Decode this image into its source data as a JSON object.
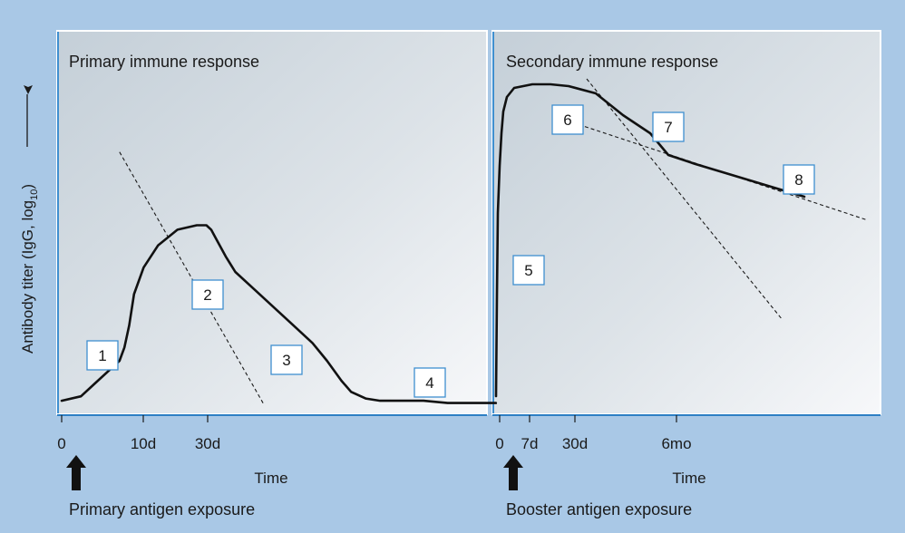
{
  "figure": {
    "y_axis_label_main": "Antibody titer (IgG, log",
    "y_axis_label_sub": "10",
    "y_axis_label_end": ")"
  },
  "chart_data": [
    {
      "type": "line",
      "title": "Primary immune response",
      "xlabel": "Time",
      "ylabel": "Antibody titer (IgG, log10)",
      "x_ticks": [
        "0",
        "10d",
        "30d"
      ],
      "exposure_label": "Primary antigen exposure",
      "annotations": [
        "1",
        "2",
        "3",
        "4"
      ],
      "series": [
        {
          "name": "antibody titer",
          "x": [
            0,
            4,
            7,
            10,
            12,
            13,
            14,
            15,
            17,
            20,
            24,
            28,
            30,
            31,
            32,
            34,
            36,
            40,
            44,
            48,
            52,
            55,
            58,
            60,
            63,
            66,
            70,
            75,
            80,
            90
          ],
          "y": [
            0.02,
            0.04,
            0.1,
            0.16,
            0.2,
            0.26,
            0.36,
            0.5,
            0.62,
            0.72,
            0.79,
            0.81,
            0.81,
            0.79,
            0.75,
            0.67,
            0.6,
            0.52,
            0.44,
            0.36,
            0.28,
            0.2,
            0.11,
            0.06,
            0.03,
            0.02,
            0.02,
            0.02,
            0.01,
            0.01
          ]
        }
      ],
      "decay_fit_line": {
        "x": [
          12,
          42
        ],
        "y": [
          1.14,
          0.0
        ]
      }
    },
    {
      "type": "line",
      "title": "Secondary immune response",
      "xlabel": "Time",
      "ylabel": "Antibody titer (IgG, log10)",
      "x_ticks": [
        "0",
        "7d",
        "30d",
        "6mo"
      ],
      "exposure_label": "Booster antigen exposure",
      "annotations": [
        "5",
        "6",
        "7",
        "8"
      ],
      "series": [
        {
          "name": "antibody titer",
          "x": [
            0,
            0.5,
            1,
            2,
            3,
            4,
            6,
            10,
            20,
            30,
            40,
            55,
            70,
            85,
            95,
            110,
            130,
            150,
            170
          ],
          "y": [
            0.05,
            0.6,
            1.06,
            1.32,
            1.5,
            1.62,
            1.7,
            1.75,
            1.77,
            1.77,
            1.76,
            1.72,
            1.6,
            1.5,
            1.38,
            1.33,
            1.27,
            1.21,
            1.15
          ]
        }
      ],
      "fast_decay_fit_line": {
        "x": [
          50,
          158
        ],
        "y": [
          1.8,
          0.47
        ]
      },
      "slow_decay_fit_line": {
        "x": [
          39,
          205
        ],
        "y": [
          1.57,
          1.02
        ]
      }
    }
  ]
}
